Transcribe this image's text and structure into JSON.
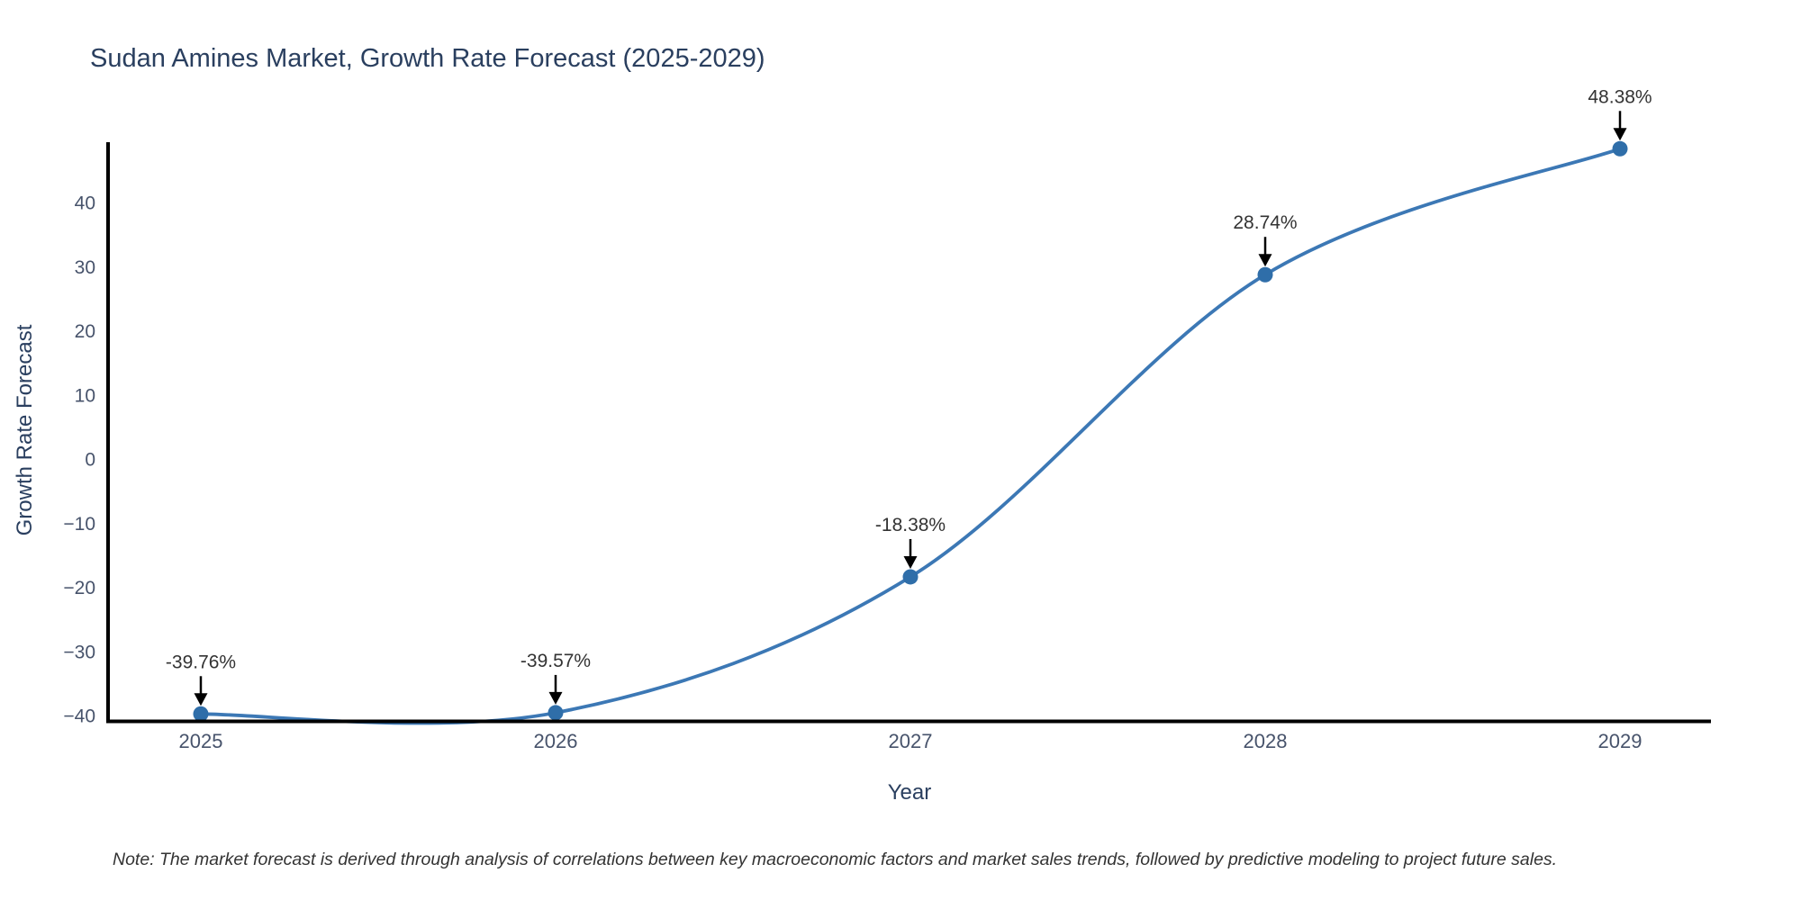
{
  "note": {
    "text": "Note: The market forecast is derived through analysis of correlations between key macroeconomic factors and market sales trends, followed by predictive modeling to project future sales."
  },
  "chart_data": {
    "type": "line",
    "line_shape": "spline",
    "title": "Sudan Amines Market, Growth Rate Forecast (2025-2029)",
    "xlabel": "Year",
    "ylabel": "Growth Rate Forecast",
    "x": [
      2025,
      2026,
      2027,
      2028,
      2029
    ],
    "series": [
      {
        "name": "Growth Rate Forecast",
        "values": [
          -39.76,
          -39.57,
          -18.38,
          28.74,
          48.38
        ]
      }
    ],
    "point_labels": [
      "-39.76%",
      "-39.57%",
      "-18.38%",
      "28.74%",
      "48.38%"
    ],
    "xtick_labels": [
      "2025",
      "2026",
      "2027",
      "2028",
      "2029"
    ],
    "ytick_values": [
      40,
      30,
      20,
      10,
      0,
      -10,
      -20,
      -30,
      -40
    ],
    "ytick_labels": [
      "40",
      "30",
      "20",
      "10",
      "0",
      "−10",
      "−20",
      "−30",
      "−40"
    ],
    "ylim": [
      -42,
      49.5
    ],
    "grid": false,
    "legend": "none",
    "markers": true,
    "annotations_have_arrows": true,
    "colors": {
      "line": "#3c78b5",
      "marker": "#2f6ea9",
      "axis": "#000000",
      "arrow": "#000000",
      "title_text": "#2a3f5f",
      "axis_title_text": "#2a3f5f",
      "tick_text": "#47536b",
      "annotation_text": "#333333",
      "background": "#ffffff"
    }
  }
}
